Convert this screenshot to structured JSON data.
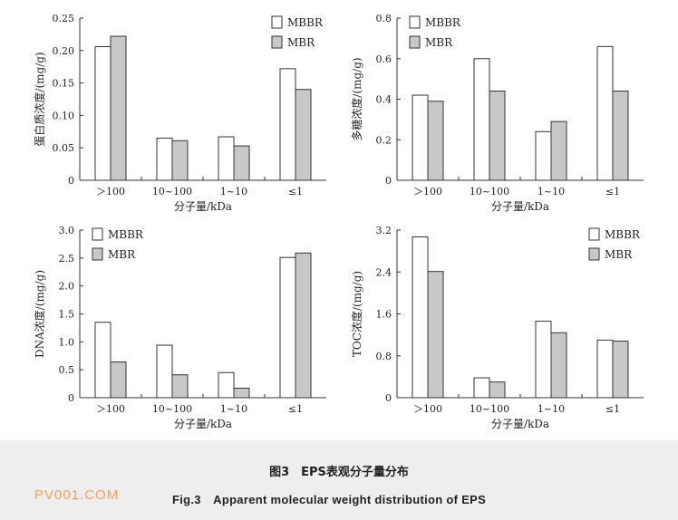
{
  "caption": {
    "title_cn": "图3　EPS表观分子量分布",
    "title_en": "Fig.3　Apparent molecular weight distribution of EPS",
    "watermark": "PV001.COM"
  },
  "colors": {
    "mbbr_fill": "#ffffff",
    "mbr_fill": "#c8c8c8",
    "stroke": "#333333",
    "caption_bg": "#eeeeee",
    "watermark": "#f0a35c"
  },
  "chart_data": [
    {
      "type": "bar",
      "categories": [
        "＞100",
        "10~100",
        "1~10",
        "≤1"
      ],
      "xlabel": "分子量/kDa",
      "ylabel": "蛋白质浓度/(mg/g)",
      "ylim": [
        0,
        0.25
      ],
      "yticks": [
        0,
        0.05,
        0.1,
        0.15,
        0.2,
        0.25
      ],
      "ytick_labels": [
        "0",
        "0.05",
        "0.10",
        "0.15",
        "0.20",
        "0.25"
      ],
      "legend_position": "top-right",
      "series": [
        {
          "name": "MBBR",
          "values": [
            0.206,
            0.065,
            0.067,
            0.172
          ]
        },
        {
          "name": "MBR",
          "values": [
            0.222,
            0.061,
            0.053,
            0.14
          ]
        }
      ]
    },
    {
      "type": "bar",
      "categories": [
        "＞100",
        "10~100",
        "1~10",
        "≤1"
      ],
      "xlabel": "分子量/kDa",
      "ylabel": "多糖浓度/(mg/g)",
      "ylim": [
        0,
        0.8
      ],
      "yticks": [
        0,
        0.2,
        0.4,
        0.6,
        0.8
      ],
      "ytick_labels": [
        "0",
        "0.2",
        "0.4",
        "0.6",
        "0.8"
      ],
      "legend_position": "top-left",
      "series": [
        {
          "name": "MBBR",
          "values": [
            0.42,
            0.6,
            0.24,
            0.66
          ]
        },
        {
          "name": "MBR",
          "values": [
            0.39,
            0.44,
            0.29,
            0.44
          ]
        }
      ]
    },
    {
      "type": "bar",
      "categories": [
        "＞100",
        "10~100",
        "1~10",
        "≤1"
      ],
      "xlabel": "分子量/kDa",
      "ylabel": "DNA浓度/(mg/g)",
      "ylim": [
        0,
        3.0
      ],
      "yticks": [
        0,
        0.5,
        1.0,
        1.5,
        2.0,
        2.5,
        3.0
      ],
      "ytick_labels": [
        "0",
        "0.5",
        "1.0",
        "1.5",
        "2.0",
        "2.5",
        "3.0"
      ],
      "legend_position": "top-left",
      "series": [
        {
          "name": "MBBR",
          "values": [
            1.35,
            0.94,
            0.45,
            2.51
          ]
        },
        {
          "name": "MBR",
          "values": [
            0.64,
            0.41,
            0.17,
            2.59
          ]
        }
      ]
    },
    {
      "type": "bar",
      "categories": [
        "＞100",
        "10~100",
        "1~10",
        "≤1"
      ],
      "xlabel": "分子量/kDa",
      "ylabel": "TOC浓度/(mg/g)",
      "ylim": [
        0,
        3.2
      ],
      "yticks": [
        0,
        0.8,
        1.6,
        2.4,
        3.2
      ],
      "ytick_labels": [
        "0",
        "0.8",
        "1.6",
        "2.4",
        "3.2"
      ],
      "legend_position": "top-right",
      "series": [
        {
          "name": "MBBR",
          "values": [
            3.07,
            0.38,
            1.46,
            1.1
          ]
        },
        {
          "name": "MBR",
          "values": [
            2.41,
            0.3,
            1.24,
            1.08
          ]
        }
      ]
    }
  ]
}
